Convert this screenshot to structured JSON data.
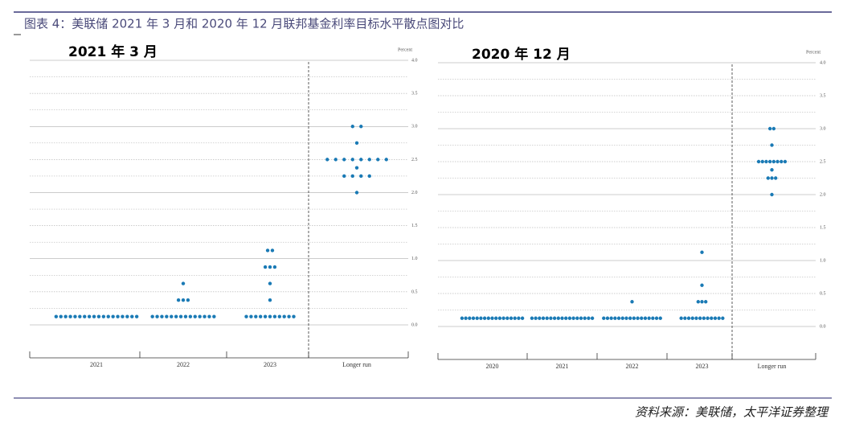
{
  "header": {
    "title": "图表 4：美联储 2021 年 3 月和 2020 年 12 月联邦基金利率目标水平散点图对比"
  },
  "chart_data": [
    {
      "type": "dotplot",
      "title": "2021 年 3 月",
      "y_label": "Percent",
      "color": "#1a7ab5",
      "categories": [
        "2021",
        "2022",
        "2023",
        "Longer run"
      ],
      "values": [
        [
          0.125,
          0.125,
          0.125,
          0.125,
          0.125,
          0.125,
          0.125,
          0.125,
          0.125,
          0.125,
          0.125,
          0.125,
          0.125,
          0.125,
          0.125,
          0.125,
          0.125,
          0.125
        ],
        [
          0.125,
          0.125,
          0.125,
          0.125,
          0.125,
          0.125,
          0.125,
          0.125,
          0.125,
          0.125,
          0.125,
          0.125,
          0.125,
          0.125,
          0.375,
          0.375,
          0.375,
          0.625
        ],
        [
          0.125,
          0.125,
          0.125,
          0.125,
          0.125,
          0.125,
          0.125,
          0.125,
          0.125,
          0.125,
          0.125,
          0.375,
          0.625,
          0.875,
          0.875,
          0.875,
          1.125,
          1.125
        ],
        [
          2,
          2.25,
          2.25,
          2.25,
          2.25,
          2.375,
          2.5,
          2.5,
          2.5,
          2.5,
          2.5,
          2.5,
          2.5,
          2.5,
          2.75,
          3,
          3
        ]
      ],
      "ylim": [
        0,
        4
      ],
      "yticks": [
        {
          "value": 0,
          "label": "0.0"
        },
        {
          "value": 0.5,
          "label": "0.5"
        },
        {
          "value": 1,
          "label": "1.0"
        },
        {
          "value": 1.5,
          "label": "1.5"
        },
        {
          "value": 2,
          "label": "2.0"
        },
        {
          "value": 2.5,
          "label": "2.5"
        },
        {
          "value": 3,
          "label": "3.0"
        },
        {
          "value": 3.5,
          "label": "3.5"
        },
        {
          "value": 4,
          "label": "4.0"
        }
      ],
      "grid": true
    },
    {
      "type": "dotplot",
      "title": "2020 年 12 月",
      "y_label": "Percent",
      "color": "#1a7ab5",
      "categories": [
        "2020",
        "2021",
        "2022",
        "2023",
        "Longer run"
      ],
      "values": [
        [
          0.125,
          0.125,
          0.125,
          0.125,
          0.125,
          0.125,
          0.125,
          0.125,
          0.125,
          0.125,
          0.125,
          0.125,
          0.125,
          0.125,
          0.125,
          0.125,
          0.125
        ],
        [
          0.125,
          0.125,
          0.125,
          0.125,
          0.125,
          0.125,
          0.125,
          0.125,
          0.125,
          0.125,
          0.125,
          0.125,
          0.125,
          0.125,
          0.125,
          0.125,
          0.125
        ],
        [
          0.125,
          0.125,
          0.125,
          0.125,
          0.125,
          0.125,
          0.125,
          0.125,
          0.125,
          0.125,
          0.125,
          0.125,
          0.125,
          0.125,
          0.125,
          0.125,
          0.375
        ],
        [
          0.125,
          0.125,
          0.125,
          0.125,
          0.125,
          0.125,
          0.125,
          0.125,
          0.125,
          0.125,
          0.125,
          0.125,
          0.375,
          0.375,
          0.375,
          0.625,
          1.125
        ],
        [
          2,
          2.25,
          2.25,
          2.25,
          2.375,
          2.5,
          2.5,
          2.5,
          2.5,
          2.5,
          2.5,
          2.5,
          2.5,
          2.75,
          3,
          3
        ]
      ],
      "ylim": [
        0,
        4
      ],
      "yticks": [
        {
          "value": 0,
          "label": "0.0"
        },
        {
          "value": 0.5,
          "label": "0.5"
        },
        {
          "value": 1,
          "label": "1.0"
        },
        {
          "value": 1.5,
          "label": "1.5"
        },
        {
          "value": 2,
          "label": "2.0"
        },
        {
          "value": 2.5,
          "label": "2.5"
        },
        {
          "value": 3,
          "label": "3.0"
        },
        {
          "value": 3.5,
          "label": "3.5"
        },
        {
          "value": 4,
          "label": "4.0"
        }
      ],
      "grid": true
    }
  ],
  "source": "资料来源：美联储，太平洋证券整理"
}
